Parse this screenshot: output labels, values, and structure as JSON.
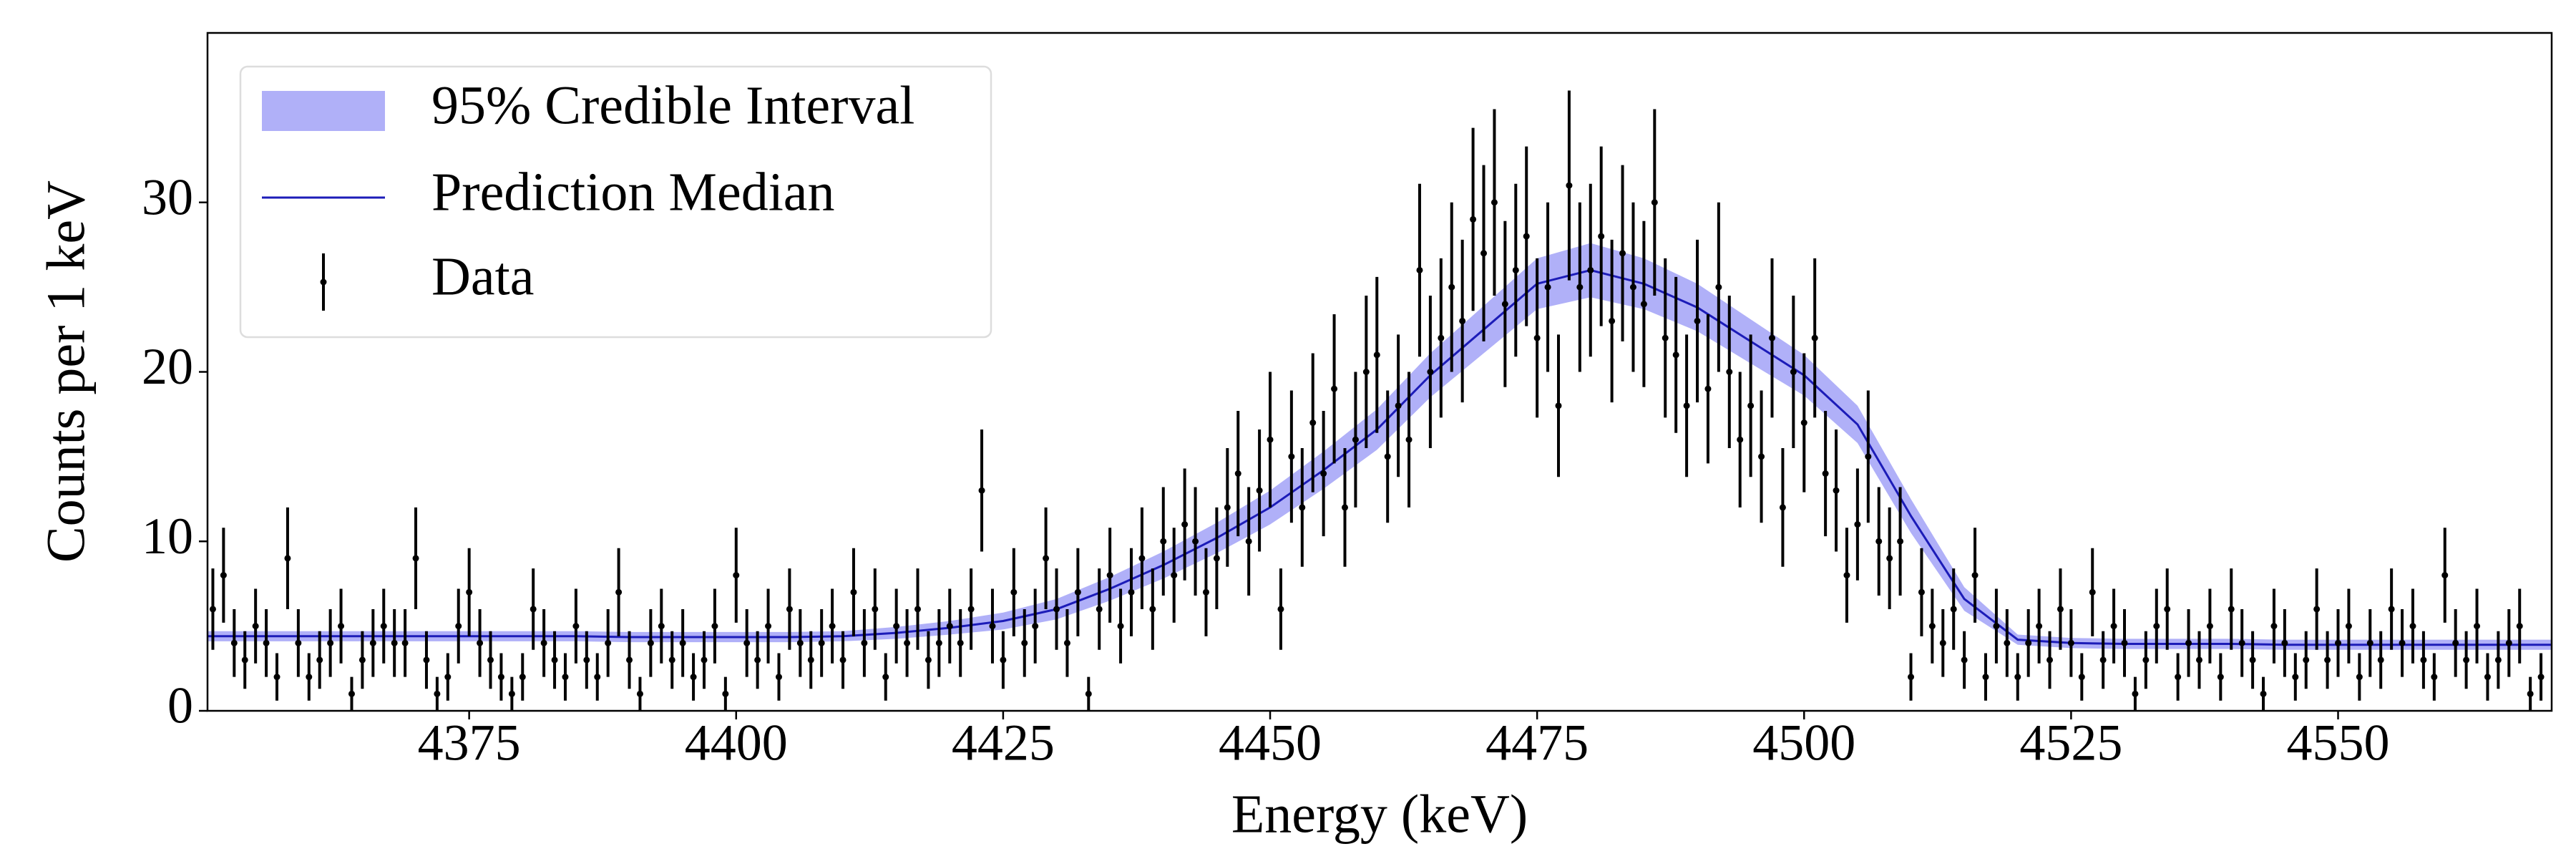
{
  "chart_data": {
    "type": "errorbar",
    "xlabel": "Energy (keV)",
    "ylabel": "Counts per 1 keV",
    "xlim": [
      4350.5,
      4570
    ],
    "ylim": [
      0,
      40
    ],
    "xticks": [
      4375,
      4400,
      4425,
      4450,
      4475,
      4500,
      4525,
      4550
    ],
    "yticks": [
      0,
      10,
      20,
      30
    ],
    "legend": "upper left",
    "series": [
      {
        "name": "95% Credible Interval",
        "type": "band",
        "color": "#b0b0f8",
        "x": [
          4350,
          4355,
          4360,
          4365,
          4370,
          4375,
          4380,
          4385,
          4390,
          4395,
          4400,
          4405,
          4410,
          4415,
          4420,
          4425,
          4430,
          4435,
          4440,
          4445,
          4450,
          4455,
          4460,
          4465,
          4470,
          4475,
          4480,
          4485,
          4490,
          4495,
          4500,
          4505,
          4510,
          4515,
          4520,
          4525,
          4530,
          4535,
          4540,
          4545,
          4550,
          4555,
          4560,
          4565,
          4570
        ],
        "lower": [
          4.1,
          4.1,
          4.1,
          4.1,
          4.1,
          4.1,
          4.1,
          4.1,
          4.05,
          4.05,
          4.05,
          4.05,
          4.1,
          4.25,
          4.5,
          4.8,
          5.4,
          6.5,
          7.8,
          9.3,
          11.0,
          13.1,
          15.4,
          18.5,
          21.1,
          23.7,
          24.4,
          23.7,
          22.4,
          20.5,
          18.6,
          15.8,
          10.5,
          5.9,
          3.9,
          3.7,
          3.65,
          3.65,
          3.65,
          3.6,
          3.6,
          3.6,
          3.6,
          3.6,
          3.6
        ],
        "upper": [
          4.7,
          4.7,
          4.7,
          4.7,
          4.7,
          4.7,
          4.7,
          4.7,
          4.65,
          4.65,
          4.65,
          4.65,
          4.7,
          4.95,
          5.3,
          5.8,
          6.6,
          7.9,
          9.4,
          11.1,
          13.0,
          15.3,
          17.8,
          21.1,
          23.9,
          26.7,
          27.6,
          26.7,
          25.2,
          23.1,
          21.0,
          18.0,
          12.5,
          7.3,
          4.5,
          4.3,
          4.25,
          4.25,
          4.25,
          4.2,
          4.2,
          4.2,
          4.2,
          4.2,
          4.2
        ]
      },
      {
        "name": "Prediction Median",
        "type": "line",
        "color": "#1c1cb8",
        "x": [
          4350,
          4355,
          4360,
          4365,
          4370,
          4375,
          4380,
          4385,
          4390,
          4395,
          4400,
          4405,
          4410,
          4415,
          4420,
          4425,
          4430,
          4435,
          4440,
          4445,
          4450,
          4455,
          4460,
          4465,
          4470,
          4475,
          4480,
          4485,
          4490,
          4495,
          4500,
          4505,
          4510,
          4515,
          4520,
          4525,
          4530,
          4535,
          4540,
          4545,
          4550,
          4555,
          4560,
          4565,
          4570
        ],
        "values": [
          4.4,
          4.4,
          4.4,
          4.4,
          4.4,
          4.4,
          4.4,
          4.4,
          4.35,
          4.35,
          4.35,
          4.35,
          4.4,
          4.6,
          4.9,
          5.3,
          6.0,
          7.2,
          8.6,
          10.2,
          12.0,
          14.2,
          16.6,
          19.8,
          22.5,
          25.2,
          26.0,
          25.2,
          23.8,
          21.8,
          19.8,
          16.9,
          11.5,
          6.6,
          4.2,
          4.0,
          3.95,
          3.95,
          3.95,
          3.9,
          3.9,
          3.9,
          3.9,
          3.9,
          3.9
        ]
      },
      {
        "name": "Data",
        "type": "errorbar",
        "color": "#000000",
        "x": [
          4351,
          4352,
          4353,
          4354,
          4355,
          4356,
          4357,
          4358,
          4359,
          4360,
          4361,
          4362,
          4363,
          4364,
          4365,
          4366,
          4367,
          4368,
          4369,
          4370,
          4371,
          4372,
          4373,
          4374,
          4375,
          4376,
          4377,
          4378,
          4379,
          4380,
          4381,
          4382,
          4383,
          4384,
          4385,
          4386,
          4387,
          4388,
          4389,
          4390,
          4391,
          4392,
          4393,
          4394,
          4395,
          4396,
          4397,
          4398,
          4399,
          4400,
          4401,
          4402,
          4403,
          4404,
          4405,
          4406,
          4407,
          4408,
          4409,
          4410,
          4411,
          4412,
          4413,
          4414,
          4415,
          4416,
          4417,
          4418,
          4419,
          4420,
          4421,
          4422,
          4423,
          4424,
          4425,
          4426,
          4427,
          4428,
          4429,
          4430,
          4431,
          4432,
          4433,
          4434,
          4435,
          4436,
          4437,
          4438,
          4439,
          4440,
          4441,
          4442,
          4443,
          4444,
          4445,
          4446,
          4447,
          4448,
          4449,
          4450,
          4451,
          4452,
          4453,
          4454,
          4455,
          4456,
          4457,
          4458,
          4459,
          4460,
          4461,
          4462,
          4463,
          4464,
          4465,
          4466,
          4467,
          4468,
          4469,
          4470,
          4471,
          4472,
          4473,
          4474,
          4475,
          4476,
          4477,
          4478,
          4479,
          4480,
          4481,
          4482,
          4483,
          4484,
          4485,
          4486,
          4487,
          4488,
          4489,
          4490,
          4491,
          4492,
          4493,
          4494,
          4495,
          4496,
          4497,
          4498,
          4499,
          4500,
          4501,
          4502,
          4503,
          4504,
          4505,
          4506,
          4507,
          4508,
          4509,
          4510,
          4511,
          4512,
          4513,
          4514,
          4515,
          4516,
          4517,
          4518,
          4519,
          4520,
          4521,
          4522,
          4523,
          4524,
          4525,
          4526,
          4527,
          4528,
          4529,
          4530,
          4531,
          4532,
          4533,
          4534,
          4535,
          4536,
          4537,
          4538,
          4539,
          4540,
          4541,
          4542,
          4543,
          4544,
          4545,
          4546,
          4547,
          4548,
          4549,
          4550,
          4551,
          4552,
          4553,
          4554,
          4555,
          4556,
          4557,
          4558,
          4559,
          4560,
          4561,
          4562,
          4563,
          4564,
          4565,
          4566,
          4567,
          4568,
          4569
        ],
        "values": [
          6,
          8,
          4,
          3,
          5,
          4,
          2,
          9,
          4,
          2,
          3,
          4,
          5,
          1,
          3,
          4,
          5,
          4,
          4,
          9,
          3,
          1,
          2,
          5,
          7,
          4,
          3,
          2,
          1,
          2,
          6,
          4,
          3,
          2,
          5,
          3,
          2,
          4,
          7,
          3,
          1,
          4,
          5,
          3,
          4,
          2,
          3,
          5,
          1,
          8,
          4,
          3,
          5,
          2,
          6,
          4,
          3,
          4,
          5,
          3,
          7,
          4,
          6,
          2,
          5,
          4,
          6,
          3,
          4,
          5,
          4,
          6,
          13,
          5,
          3,
          7,
          4,
          5,
          9,
          6,
          4,
          7,
          1,
          6,
          8,
          5,
          7,
          9,
          6,
          10,
          8,
          11,
          10,
          7,
          9,
          12,
          14,
          10,
          13,
          16,
          6,
          15,
          12,
          17,
          14,
          19,
          12,
          16,
          20,
          21,
          15,
          18,
          16,
          26,
          20,
          22,
          25,
          23,
          29,
          27,
          30,
          24,
          26,
          28,
          22,
          25,
          18,
          31,
          25,
          26,
          28,
          23,
          27,
          25,
          24,
          30,
          22,
          21,
          18,
          23,
          19,
          25,
          20,
          16,
          18,
          15,
          22,
          12,
          20,
          17,
          22,
          14,
          13,
          8,
          11,
          15,
          10,
          9,
          10,
          2,
          7,
          5,
          4,
          6,
          3,
          8,
          2,
          5,
          4,
          2,
          4,
          5,
          3,
          6,
          4,
          2,
          7,
          3,
          5,
          4,
          1,
          3,
          5,
          6,
          2,
          4,
          3,
          5,
          2,
          6,
          4,
          3,
          1,
          5,
          4,
          2,
          3,
          6,
          3,
          4,
          5,
          2,
          4,
          3,
          6,
          4,
          5,
          3,
          2,
          8,
          4,
          3,
          5,
          2,
          3,
          4,
          5,
          1,
          2
        ],
        "errors": [
          2.4,
          2.8,
          2,
          1.7,
          2.2,
          2,
          1.4,
          3,
          2,
          1.4,
          1.7,
          2,
          2.2,
          1,
          1.7,
          2,
          2.2,
          2,
          2,
          3,
          1.7,
          1,
          1.4,
          2.2,
          2.6,
          2,
          1.7,
          1.4,
          1,
          1.4,
          2.4,
          2,
          1.7,
          1.4,
          2.2,
          1.7,
          1.4,
          2,
          2.6,
          1.7,
          1,
          2,
          2.2,
          1.7,
          2,
          1.4,
          1.7,
          2.2,
          1,
          2.8,
          2,
          1.7,
          2.2,
          1.4,
          2.4,
          2,
          1.7,
          2,
          2.2,
          1.7,
          2.6,
          2,
          2.4,
          1.4,
          2.2,
          2,
          2.4,
          1.7,
          2,
          2.2,
          2,
          2.4,
          3.6,
          2.2,
          1.7,
          2.6,
          2,
          2.2,
          3,
          2.4,
          2,
          2.6,
          1,
          2.4,
          2.8,
          2.2,
          2.6,
          3,
          2.4,
          3.2,
          2.8,
          3.3,
          3.2,
          2.6,
          3,
          3.5,
          3.7,
          3.2,
          3.6,
          4,
          2.4,
          3.9,
          3.5,
          4.1,
          3.7,
          4.4,
          3.5,
          4,
          4.5,
          4.6,
          3.9,
          4.2,
          4,
          5.1,
          4.5,
          4.7,
          5,
          4.8,
          5.4,
          5.2,
          5.5,
          4.9,
          5.1,
          5.3,
          4.7,
          5,
          4.2,
          5.6,
          5,
          5.1,
          5.3,
          4.8,
          5.2,
          5,
          4.9,
          5.5,
          4.7,
          4.6,
          4.2,
          4.8,
          4.4,
          5,
          4.5,
          4,
          4.2,
          3.9,
          4.7,
          3.5,
          4.5,
          4.1,
          4.7,
          3.7,
          3.6,
          2.8,
          3.3,
          3.9,
          3.2,
          3,
          3.2,
          1.4,
          2.6,
          2.2,
          2,
          2.4,
          1.7,
          2.8,
          1.4,
          2.2,
          2,
          1.4,
          2,
          2.2,
          1.7,
          2.4,
          2,
          1.4,
          2.6,
          1.7,
          2.2,
          2,
          1,
          1.7,
          2.2,
          2.4,
          1.4,
          2,
          1.7,
          2.2,
          1.4,
          2.4,
          2,
          1.7,
          1,
          2.2,
          2,
          1.4,
          1.7,
          2.4,
          1.7,
          2,
          2.2,
          1.4,
          2,
          1.7,
          2.4,
          2,
          2.2,
          1.7,
          1.4,
          2.8,
          2,
          1.7,
          2.2,
          1.4,
          1.7,
          2,
          2.2,
          1,
          1.4
        ]
      }
    ]
  }
}
